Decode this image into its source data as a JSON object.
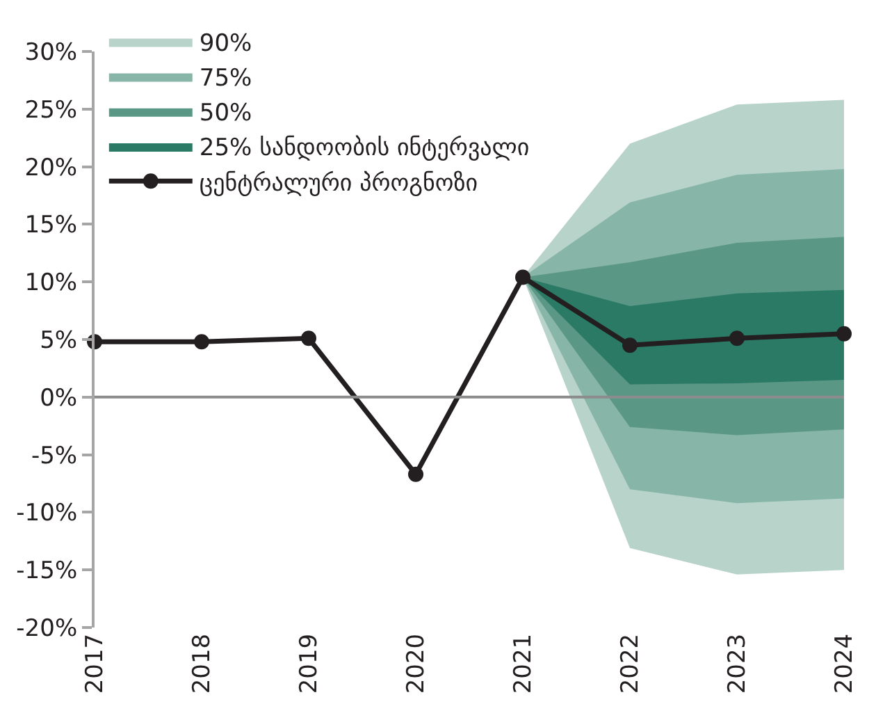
{
  "chart_data": {
    "type": "line",
    "categories": [
      "2017",
      "2018",
      "2019",
      "2020",
      "2021",
      "2022",
      "2023",
      "2024"
    ],
    "series": [
      {
        "name": "90%",
        "type": "area",
        "color": "#b7d3ca",
        "values": [
          null,
          null,
          null,
          null,
          null,
          null,
          null,
          null
        ],
        "lower": [
          null,
          null,
          null,
          null,
          10.4,
          -13.1,
          -15.4,
          -15.0
        ],
        "upper": [
          null,
          null,
          null,
          null,
          10.4,
          22.0,
          25.4,
          25.8
        ]
      },
      {
        "name": "75%",
        "type": "area",
        "color": "#87b5a7",
        "values": [
          null,
          null,
          null,
          null,
          null,
          null,
          null,
          null
        ],
        "lower": [
          null,
          null,
          null,
          null,
          10.4,
          -8.0,
          -9.2,
          -8.8
        ],
        "upper": [
          null,
          null,
          null,
          null,
          10.4,
          16.9,
          19.3,
          19.8
        ]
      },
      {
        "name": "50%",
        "type": "area",
        "color": "#5a9784",
        "values": [
          null,
          null,
          null,
          null,
          null,
          null,
          null,
          null
        ],
        "lower": [
          null,
          null,
          null,
          null,
          10.4,
          -2.6,
          -3.3,
          -2.8
        ],
        "upper": [
          null,
          null,
          null,
          null,
          10.4,
          11.7,
          13.4,
          13.9
        ]
      },
      {
        "name": "25% სანდოობის ინტერვალი",
        "type": "area",
        "color": "#2a7a66",
        "values": [
          null,
          null,
          null,
          null,
          null,
          null,
          null,
          null
        ],
        "lower": [
          null,
          null,
          null,
          null,
          10.4,
          1.1,
          1.2,
          1.5
        ],
        "upper": [
          null,
          null,
          null,
          null,
          10.4,
          7.9,
          9.0,
          9.3
        ]
      },
      {
        "name": "ცენტრალური პროგნოზი",
        "type": "line",
        "color": "#231f20",
        "values": [
          4.8,
          4.8,
          5.1,
          -6.7,
          10.4,
          4.5,
          5.1,
          5.5
        ]
      }
    ],
    "ylim": [
      -20,
      30
    ],
    "yticks": [
      {
        "value": -20,
        "label": "-20%"
      },
      {
        "value": -15,
        "label": "-15%"
      },
      {
        "value": -10,
        "label": "-10%"
      },
      {
        "value": -5,
        "label": "-5%"
      },
      {
        "value": 0,
        "label": "0%"
      },
      {
        "value": 5,
        "label": "5%"
      },
      {
        "value": 10,
        "label": "10%"
      },
      {
        "value": 15,
        "label": "15%"
      },
      {
        "value": 20,
        "label": "20%"
      },
      {
        "value": 25,
        "label": "25%"
      },
      {
        "value": 30,
        "label": "30%"
      }
    ],
    "ref_lines": [
      {
        "axis": "y",
        "value": 0,
        "color": "#8c8c8c"
      }
    ],
    "grid": false,
    "legend": "top left",
    "marker": "circle",
    "line_style": "solid"
  }
}
